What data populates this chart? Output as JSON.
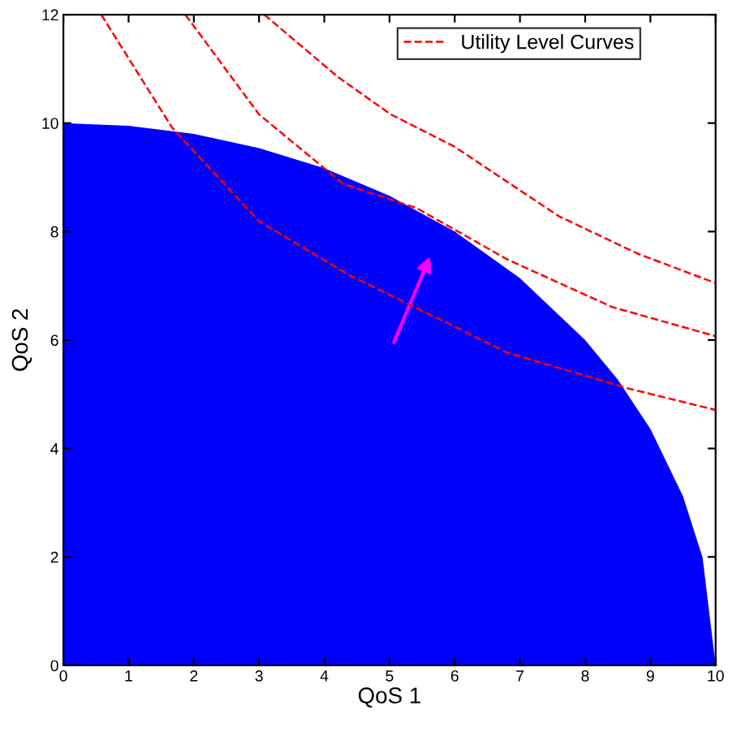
{
  "chart_data": {
    "type": "line",
    "xlabel": "QoS 1",
    "ylabel": "QoS 2",
    "xlim": [
      0,
      10
    ],
    "ylim": [
      0,
      12
    ],
    "xticks": [
      0,
      1,
      2,
      3,
      4,
      5,
      6,
      7,
      8,
      9,
      10
    ],
    "yticks": [
      0,
      2,
      4,
      6,
      8,
      10,
      12
    ],
    "grid": false,
    "legend": "top right",
    "line_style": "dashed",
    "series": [
      {
        "type": "area",
        "color": "#0000ff",
        "x": [
          0,
          1,
          2,
          3,
          4,
          5,
          6,
          7,
          8,
          8.5,
          9,
          9.5,
          9.8,
          10
        ],
        "values": [
          10,
          9.95,
          9.8,
          9.54,
          9.17,
          8.66,
          8,
          7.14,
          6,
          5.27,
          4.36,
          3.12,
          1.99,
          0
        ]
      },
      {
        "name": "Utility Level Curves",
        "color": "#ff0000",
        "x": [
          0.58,
          1.67,
          3.0,
          4.38,
          5.06,
          6.8,
          8.65,
          10
        ],
        "values": [
          12,
          9.91,
          8.19,
          7.2,
          6.8,
          5.77,
          5.11,
          4.71
        ]
      },
      {
        "color": "#ff0000",
        "x": [
          1.87,
          3.0,
          4.29,
          5.42,
          6.8,
          8.41,
          10
        ],
        "values": [
          12,
          10.16,
          8.88,
          8.43,
          7.49,
          6.61,
          6.07
        ]
      },
      {
        "color": "#ff0000",
        "x": [
          3.08,
          4.21,
          5.02,
          5.99,
          7.6,
          8.81,
          10
        ],
        "values": [
          12,
          10.85,
          10.16,
          9.57,
          8.28,
          7.59,
          7.05
        ]
      }
    ]
  }
}
